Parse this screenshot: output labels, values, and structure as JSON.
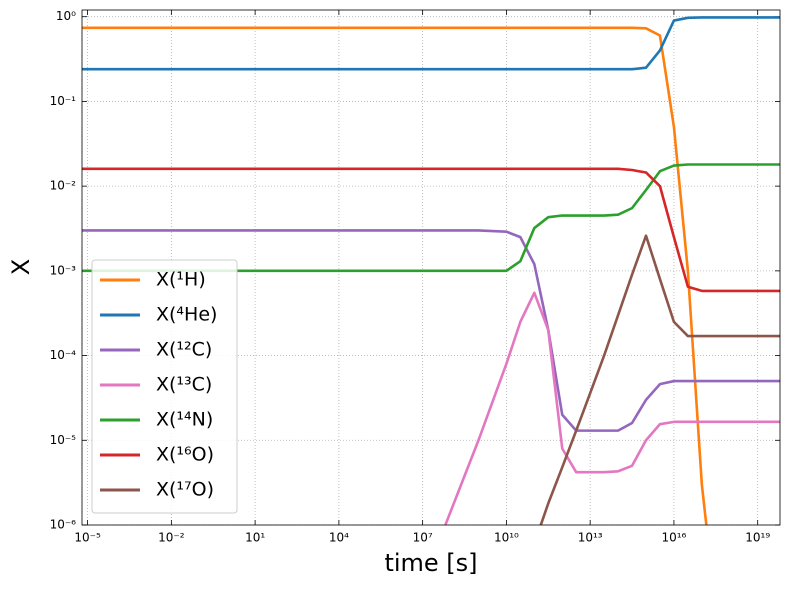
{
  "chart_data": {
    "type": "line",
    "xlabel": "time [s]",
    "ylabel": "X",
    "xscale": "log",
    "yscale": "log",
    "grid": true,
    "legend": "lower left",
    "x": [
      6.3e-06,
      1,
      100000.0,
      50000000.0,
      1000000000.0,
      10000000000.0,
      31600000000.0,
      100000000000.0,
      316000000000.0,
      1000000000000.0,
      3160000000000.0,
      10000000000000.0,
      31600000000000.0,
      100000000000000.0,
      316000000000000.0,
      1000000000000000.0,
      3160000000000000.0,
      1e+16,
      3.16e+16,
      1e+17,
      3.16e+17,
      1e+18,
      1e+19,
      6.3e+19
    ],
    "series": [
      {
        "name": "X(¹H)",
        "color": "#ff7f0e",
        "values": [
          0.74,
          0.74,
          0.74,
          0.74,
          0.74,
          0.74,
          0.74,
          0.74,
          0.74,
          0.74,
          0.74,
          0.74,
          0.74,
          0.74,
          0.74,
          0.73,
          0.6,
          0.05,
          0.001,
          3e-06,
          1e-07,
          null,
          null,
          null
        ]
      },
      {
        "name": "X(⁴He)",
        "color": "#1f77b4",
        "values": [
          0.24,
          0.24,
          0.24,
          0.24,
          0.24,
          0.24,
          0.24,
          0.24,
          0.24,
          0.24,
          0.24,
          0.24,
          0.24,
          0.24,
          0.24,
          0.25,
          0.4,
          0.9,
          0.97,
          0.98,
          0.98,
          0.98,
          0.98,
          0.98
        ]
      },
      {
        "name": "X(¹²C)",
        "color": "#9467bd",
        "values": [
          0.003,
          0.003,
          0.003,
          0.003,
          0.003,
          0.0029,
          0.0025,
          0.0012,
          0.0002,
          2e-05,
          1.3e-05,
          1.3e-05,
          1.3e-05,
          1.3e-05,
          1.6e-05,
          3e-05,
          4.6e-05,
          5e-05,
          5e-05,
          5e-05,
          5e-05,
          5e-05,
          5e-05,
          5e-05
        ]
      },
      {
        "name": "X(¹³C)",
        "color": "#e377c2",
        "values": [
          null,
          null,
          null,
          8e-07,
          1e-05,
          8e-05,
          0.00025,
          0.00055,
          0.0002,
          8e-06,
          4.2e-06,
          4.2e-06,
          4.2e-06,
          4.3e-06,
          5e-06,
          1e-05,
          1.55e-05,
          1.65e-05,
          1.65e-05,
          1.65e-05,
          1.65e-05,
          1.65e-05,
          1.65e-05,
          1.65e-05
        ]
      },
      {
        "name": "X(¹⁴N)",
        "color": "#2ca02c",
        "values": [
          0.001,
          0.001,
          0.001,
          0.001,
          0.001,
          0.001,
          0.0013,
          0.0032,
          0.0043,
          0.0045,
          0.0045,
          0.0045,
          0.0045,
          0.0046,
          0.0055,
          0.009,
          0.015,
          0.0175,
          0.018,
          0.018,
          0.018,
          0.018,
          0.018,
          0.018
        ]
      },
      {
        "name": "X(¹⁶O)",
        "color": "#d62728",
        "values": [
          0.016,
          0.016,
          0.016,
          0.016,
          0.016,
          0.016,
          0.016,
          0.016,
          0.016,
          0.016,
          0.016,
          0.016,
          0.016,
          0.016,
          0.0155,
          0.0145,
          0.01,
          0.0025,
          0.00065,
          0.00058,
          0.00058,
          0.00058,
          0.00058,
          0.00058
        ]
      },
      {
        "name": "X(¹⁷O)",
        "color": "#8c564b",
        "values": [
          null,
          null,
          null,
          null,
          null,
          null,
          null,
          6e-07,
          1.8e-06,
          4.8e-06,
          1.3e-05,
          3.6e-05,
          0.0001,
          0.0003,
          0.0009,
          0.0026,
          0.0008,
          0.00025,
          0.00017,
          0.00017,
          0.00017,
          0.00017,
          0.00017,
          0.00017
        ]
      }
    ],
    "xlim": [
      6.3e-06,
      6.3e+19
    ],
    "xticks": [
      {
        "value": 1e-05,
        "label": "10⁻⁵"
      },
      {
        "value": 0.01,
        "label": "10⁻²"
      },
      {
        "value": 10,
        "label": "10¹"
      },
      {
        "value": 10000,
        "label": "10⁴"
      },
      {
        "value": 10000000.0,
        "label": "10⁷"
      },
      {
        "value": 10000000000.0,
        "label": "10¹⁰"
      },
      {
        "value": 10000000000000.0,
        "label": "10¹³"
      },
      {
        "value": 1e+16,
        "label": "10¹⁶"
      },
      {
        "value": 1e+19,
        "label": "10¹⁹"
      }
    ],
    "ylim": [
      1e-06,
      1.2
    ],
    "yticks": [
      {
        "value": 1e-06,
        "label": "10⁻⁶"
      },
      {
        "value": 1e-05,
        "label": "10⁻⁵"
      },
      {
        "value": 0.0001,
        "label": "10⁻⁴"
      },
      {
        "value": 0.001,
        "label": "10⁻³"
      },
      {
        "value": 0.01,
        "label": "10⁻²"
      },
      {
        "value": 0.1,
        "label": "10⁻¹"
      },
      {
        "value": 1,
        "label": "10⁰"
      }
    ]
  }
}
